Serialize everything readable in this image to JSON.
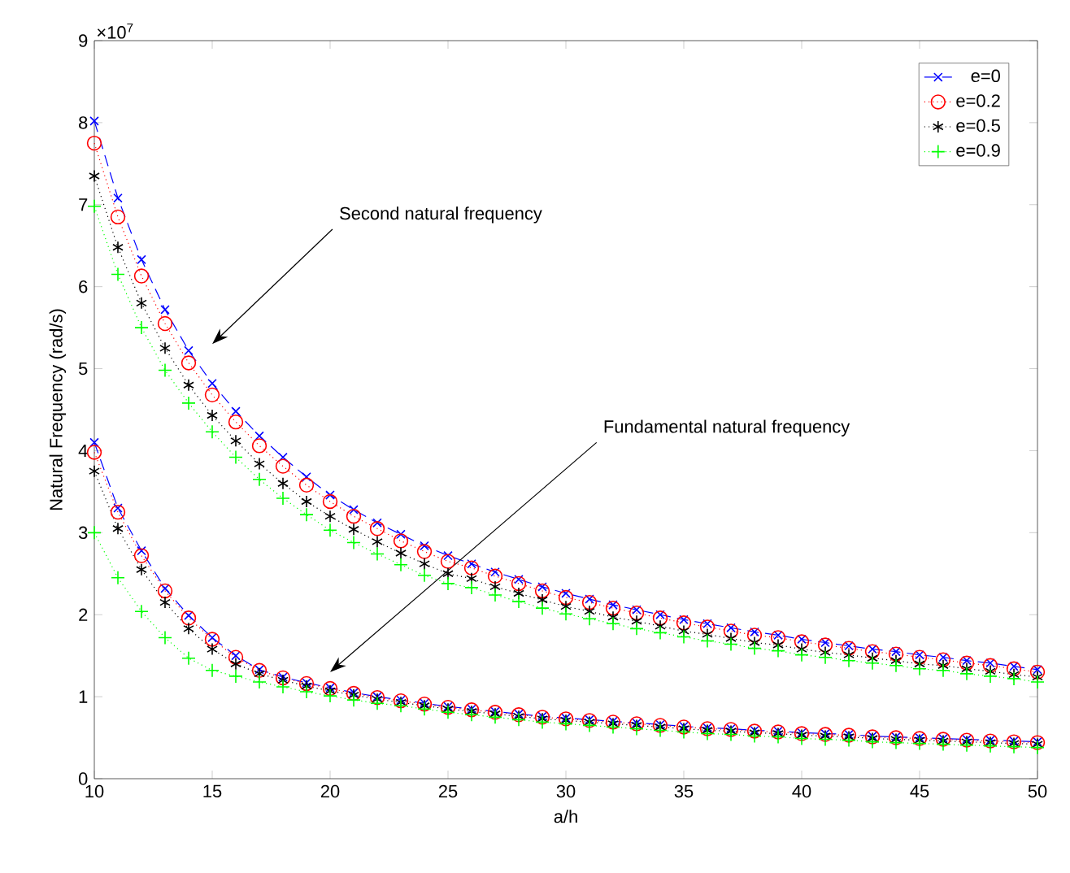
{
  "chart_data": {
    "type": "line",
    "xlabel": "a/h",
    "ylabel": "Natural Frequency (rad/s)",
    "x": [
      10,
      11,
      12,
      13,
      14,
      15,
      16,
      17,
      18,
      19,
      20,
      21,
      22,
      23,
      24,
      25,
      26,
      27,
      28,
      29,
      30,
      31,
      32,
      33,
      34,
      35,
      36,
      37,
      38,
      39,
      40,
      41,
      42,
      43,
      44,
      45,
      46,
      47,
      48,
      49,
      50
    ],
    "series": [
      {
        "name": "e=0",
        "color": "#0000ff",
        "marker": "x",
        "line_style": "dashed",
        "values": [
          8.02,
          7.08,
          6.33,
          5.72,
          5.22,
          4.82,
          4.48,
          4.18,
          3.92,
          3.68,
          3.46,
          3.28,
          3.12,
          2.98,
          2.84,
          2.72,
          2.62,
          2.52,
          2.43,
          2.34,
          2.26,
          2.19,
          2.12,
          2.06,
          2.0,
          1.94,
          1.89,
          1.84,
          1.79,
          1.75,
          1.7,
          1.66,
          1.62,
          1.58,
          1.55,
          1.51,
          1.48,
          1.44,
          1.41,
          1.37,
          1.33
        ]
      },
      {
        "name": "e=0.2",
        "color": "#ff0000",
        "marker": "circle",
        "line_style": "dotted",
        "values": [
          7.75,
          6.85,
          6.13,
          5.55,
          5.07,
          4.68,
          4.35,
          4.06,
          3.81,
          3.58,
          3.38,
          3.2,
          3.05,
          2.9,
          2.77,
          2.65,
          2.57,
          2.47,
          2.38,
          2.29,
          2.21,
          2.15,
          2.08,
          2.02,
          1.96,
          1.9,
          1.85,
          1.8,
          1.75,
          1.72,
          1.67,
          1.63,
          1.59,
          1.55,
          1.52,
          1.48,
          1.45,
          1.41,
          1.38,
          1.34,
          1.3
        ]
      },
      {
        "name": "e=0.5",
        "color": "#000000",
        "marker": "cross",
        "line_style": "dotted",
        "values": [
          7.35,
          6.48,
          5.8,
          5.25,
          4.8,
          4.43,
          4.12,
          3.84,
          3.6,
          3.38,
          3.2,
          3.04,
          2.89,
          2.75,
          2.62,
          2.5,
          2.44,
          2.34,
          2.26,
          2.18,
          2.1,
          2.04,
          1.97,
          1.92,
          1.86,
          1.8,
          1.76,
          1.71,
          1.66,
          1.63,
          1.58,
          1.54,
          1.51,
          1.47,
          1.44,
          1.4,
          1.38,
          1.34,
          1.31,
          1.27,
          1.24
        ]
      },
      {
        "name": "e=0.9",
        "color": "#00ff00",
        "marker": "plus",
        "line_style": "dotted",
        "values": [
          6.98,
          6.15,
          5.5,
          4.98,
          4.58,
          4.23,
          3.92,
          3.65,
          3.42,
          3.22,
          3.03,
          2.88,
          2.74,
          2.61,
          2.48,
          2.38,
          2.33,
          2.24,
          2.16,
          2.08,
          2.01,
          1.95,
          1.89,
          1.83,
          1.78,
          1.73,
          1.68,
          1.64,
          1.59,
          1.56,
          1.51,
          1.48,
          1.44,
          1.41,
          1.38,
          1.34,
          1.32,
          1.28,
          1.25,
          1.22,
          1.18
        ]
      },
      {
        "color": "#0000ff",
        "marker": "x",
        "line_style": "dashed",
        "values": [
          4.1,
          3.3,
          2.78,
          2.32,
          1.99,
          1.72,
          1.5,
          1.33,
          1.24,
          1.17,
          1.11,
          1.05,
          1.0,
          0.96,
          0.92,
          0.88,
          0.85,
          0.82,
          0.79,
          0.76,
          0.74,
          0.72,
          0.7,
          0.68,
          0.66,
          0.64,
          0.62,
          0.61,
          0.59,
          0.58,
          0.56,
          0.55,
          0.54,
          0.52,
          0.51,
          0.5,
          0.49,
          0.48,
          0.47,
          0.46,
          0.45
        ]
      },
      {
        "color": "#ff0000",
        "marker": "circle",
        "line_style": "dotted",
        "values": [
          3.98,
          3.25,
          2.72,
          2.29,
          1.96,
          1.7,
          1.48,
          1.32,
          1.23,
          1.16,
          1.1,
          1.04,
          0.99,
          0.95,
          0.91,
          0.87,
          0.84,
          0.81,
          0.78,
          0.75,
          0.73,
          0.71,
          0.69,
          0.67,
          0.65,
          0.63,
          0.61,
          0.6,
          0.58,
          0.57,
          0.55,
          0.54,
          0.53,
          0.51,
          0.5,
          0.49,
          0.48,
          0.47,
          0.46,
          0.45,
          0.44
        ]
      },
      {
        "color": "#000000",
        "marker": "cross",
        "line_style": "dotted",
        "values": [
          3.75,
          3.05,
          2.55,
          2.15,
          1.83,
          1.58,
          1.4,
          1.28,
          1.2,
          1.13,
          1.07,
          1.02,
          0.97,
          0.93,
          0.89,
          0.85,
          0.82,
          0.79,
          0.76,
          0.73,
          0.71,
          0.69,
          0.67,
          0.65,
          0.63,
          0.61,
          0.59,
          0.58,
          0.56,
          0.55,
          0.53,
          0.52,
          0.51,
          0.49,
          0.48,
          0.47,
          0.46,
          0.45,
          0.44,
          0.43,
          0.42
        ]
      },
      {
        "color": "#00ff00",
        "marker": "plus",
        "line_style": "dotted",
        "values": [
          3.0,
          2.45,
          2.04,
          1.72,
          1.47,
          1.32,
          1.25,
          1.18,
          1.12,
          1.06,
          1.01,
          0.96,
          0.92,
          0.89,
          0.85,
          0.81,
          0.78,
          0.75,
          0.72,
          0.69,
          0.67,
          0.65,
          0.63,
          0.61,
          0.59,
          0.57,
          0.55,
          0.54,
          0.52,
          0.51,
          0.49,
          0.48,
          0.47,
          0.45,
          0.44,
          0.43,
          0.42,
          0.41,
          0.4,
          0.39,
          0.38
        ]
      }
    ],
    "xlim": [
      10,
      50
    ],
    "ylim": [
      0,
      9
    ],
    "xticks": [
      10,
      15,
      20,
      25,
      30,
      35,
      40,
      45,
      50
    ],
    "yticks": [
      0,
      1,
      2,
      3,
      4,
      5,
      6,
      7,
      8,
      9
    ],
    "legend": "top right",
    "grid": false,
    "annotations": [
      "×10$^{7}$",
      "Second natural frequency",
      "Fundamental natural frequency"
    ]
  }
}
